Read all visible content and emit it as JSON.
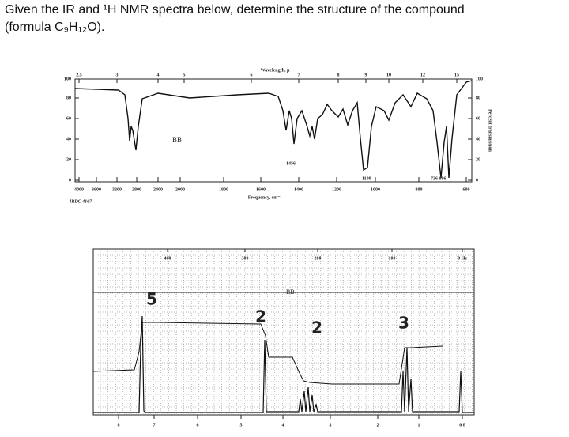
{
  "question": {
    "line1": "Given the IR and ¹H NMR spectra below, determine the structure of the compound",
    "line2": "(formula C₉H₁₂O)."
  },
  "ir": {
    "wavelength_label": "Wavelength, μ",
    "frequency_label": "Frequency, cm⁻¹",
    "transmission_label": "Percent transmission",
    "wavelength_ticks": [
      "2.5",
      "3",
      "4",
      "5",
      "6",
      "7",
      "8",
      "9",
      "10",
      "12",
      "15"
    ],
    "frequency_ticks": [
      "4000",
      "3600",
      "3200",
      "2800",
      "2400",
      "2000",
      "1800",
      "1600",
      "1400",
      "1200",
      "1000",
      "800",
      "600"
    ],
    "percent_ticks_left": [
      "100",
      "80",
      "60",
      "40",
      "20",
      "0"
    ],
    "percent_ticks_right": [
      "100",
      "80",
      "60",
      "40",
      "20",
      "0"
    ],
    "sample": "BB",
    "peak_labels": [
      "1456",
      "1100",
      "736 696"
    ],
    "catalog": "IRDC 4167"
  },
  "nmr": {
    "hz_ticks": [
      "400",
      "300",
      "200",
      "100",
      "0 Hz"
    ],
    "ppm_ticks": [
      "8",
      "7",
      "6",
      "5",
      "4",
      "3",
      "2",
      "1",
      "0 δ"
    ],
    "sample": "BB",
    "integrations": [
      "5",
      "2",
      "2",
      "3"
    ]
  }
}
